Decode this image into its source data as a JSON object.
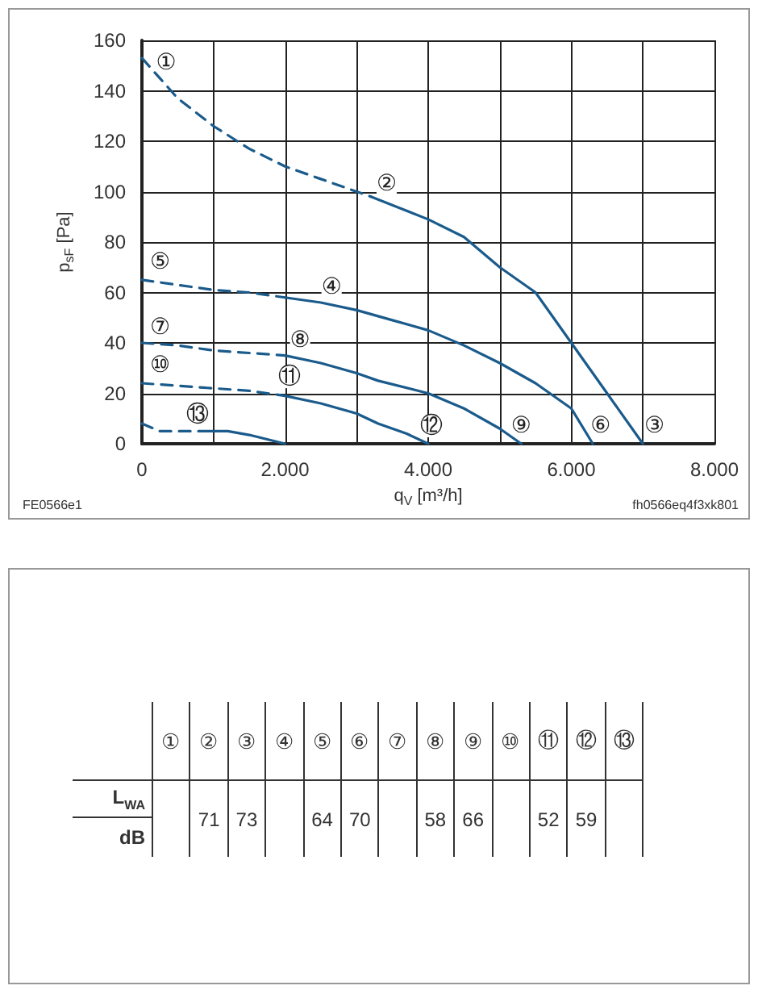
{
  "chart_data": [
    {
      "type": "line",
      "xlabel": "q$_{V}$ [m³/h]",
      "ylabel": "p$_{sF}$ [Pa]",
      "xlim": [
        0,
        8000
      ],
      "ylim": [
        0,
        160
      ],
      "xticks": [
        0,
        {
          "value": 1000,
          "label": null
        },
        {
          "value": 2000,
          "label": "2.000"
        },
        {
          "value": 3000,
          "label": null
        },
        {
          "value": 4000,
          "label": "4.000"
        },
        {
          "value": 5000,
          "label": null
        },
        {
          "value": 6000,
          "label": "6.000"
        },
        {
          "value": 7000,
          "label": null
        },
        {
          "value": 8000,
          "label": "8.000"
        }
      ],
      "yticks": [
        0,
        20,
        40,
        60,
        80,
        100,
        120,
        140,
        160
      ],
      "grid": true,
      "series": [
        {
          "color": "#1a5b8c",
          "line_style": "dashed",
          "x": [
            0,
            250,
            500,
            1000,
            1500,
            2000,
            2500,
            3000,
            3200
          ],
          "values": [
            153,
            145,
            137,
            126,
            117,
            110,
            105,
            100,
            98
          ]
        },
        {
          "color": "#1a5b8c",
          "line_style": "solid",
          "x": [
            3200,
            4000,
            4500,
            5000,
            5500,
            6000,
            6500,
            7000
          ],
          "values": [
            98,
            89,
            82,
            70,
            60,
            40,
            20,
            0
          ]
        },
        {
          "color": "#1a5b8c",
          "line_style": "dashed",
          "x": [
            0,
            500,
            1000,
            1500,
            2000
          ],
          "values": [
            65,
            63,
            61,
            60,
            58
          ]
        },
        {
          "color": "#1a5b8c",
          "line_style": "solid",
          "x": [
            2000,
            2500,
            3000,
            3500,
            4000,
            4500,
            5000,
            5500,
            6000,
            6300
          ],
          "values": [
            58,
            56,
            53,
            49,
            45,
            39,
            32,
            24,
            14,
            0
          ]
        },
        {
          "color": "#1a5b8c",
          "line_style": "dashed",
          "x": [
            0,
            500,
            1000,
            1500,
            2000
          ],
          "values": [
            40,
            39,
            37,
            36,
            35
          ]
        },
        {
          "color": "#1a5b8c",
          "line_style": "solid",
          "x": [
            2000,
            2500,
            3000,
            3300,
            4000,
            4500,
            5000,
            5300
          ],
          "values": [
            35,
            32,
            28,
            25,
            20,
            14,
            6,
            0
          ]
        },
        {
          "color": "#1a5b8c",
          "line_style": "dashed",
          "x": [
            0,
            500,
            1000,
            1500,
            2000
          ],
          "values": [
            24,
            23,
            22,
            21,
            19
          ]
        },
        {
          "color": "#1a5b8c",
          "line_style": "solid",
          "x": [
            2000,
            2500,
            3000,
            3300,
            3700,
            4000
          ],
          "values": [
            19,
            16,
            12,
            8,
            4,
            0
          ]
        },
        {
          "color": "#1a5b8c",
          "line_style": "dashed",
          "x": [
            0,
            250,
            500,
            800
          ],
          "values": [
            8,
            5,
            5,
            5
          ]
        },
        {
          "color": "#1a5b8c",
          "line_style": "solid",
          "x": [
            800,
            1200,
            1500,
            2000
          ],
          "values": [
            5,
            5,
            3.5,
            0
          ]
        }
      ],
      "annotations": [
        {
          "text": "①",
          "x": 340,
          "y": 151
        },
        {
          "text": "②",
          "x": 3420,
          "y": 103
        },
        {
          "text": "③",
          "x": 7160,
          "y": 7
        },
        {
          "text": "④",
          "x": 2650,
          "y": 62
        },
        {
          "text": "⑤",
          "x": 255,
          "y": 72
        },
        {
          "text": "⑥",
          "x": 6410,
          "y": 7
        },
        {
          "text": "⑦",
          "x": 255,
          "y": 46
        },
        {
          "text": "⑧",
          "x": 2210,
          "y": 41
        },
        {
          "text": "⑨",
          "x": 5300,
          "y": 7
        },
        {
          "text": "⑩",
          "x": 255,
          "y": 31
        },
        {
          "text": "⑪",
          "x": 2060,
          "y": 26.5
        },
        {
          "text": "⑫",
          "x": 4050,
          "y": 7
        },
        {
          "text": "⑬",
          "x": 780,
          "y": 11.5
        },
        "FE0566e1",
        "fh0566eq4f3xk801"
      ]
    },
    {
      "type": "other",
      "categories": [
        "①",
        "②",
        "③",
        "④",
        "⑤",
        "⑥",
        "⑦",
        "⑧",
        "⑨",
        "⑩",
        "⑪",
        "⑫",
        "⑬"
      ],
      "values": [
        null,
        71,
        73,
        null,
        64,
        70,
        null,
        58,
        66,
        null,
        52,
        59,
        null
      ],
      "data_labels": true,
      "ylabel": "L$_{WA}$",
      "annotations": [
        "dB"
      ]
    }
  ]
}
